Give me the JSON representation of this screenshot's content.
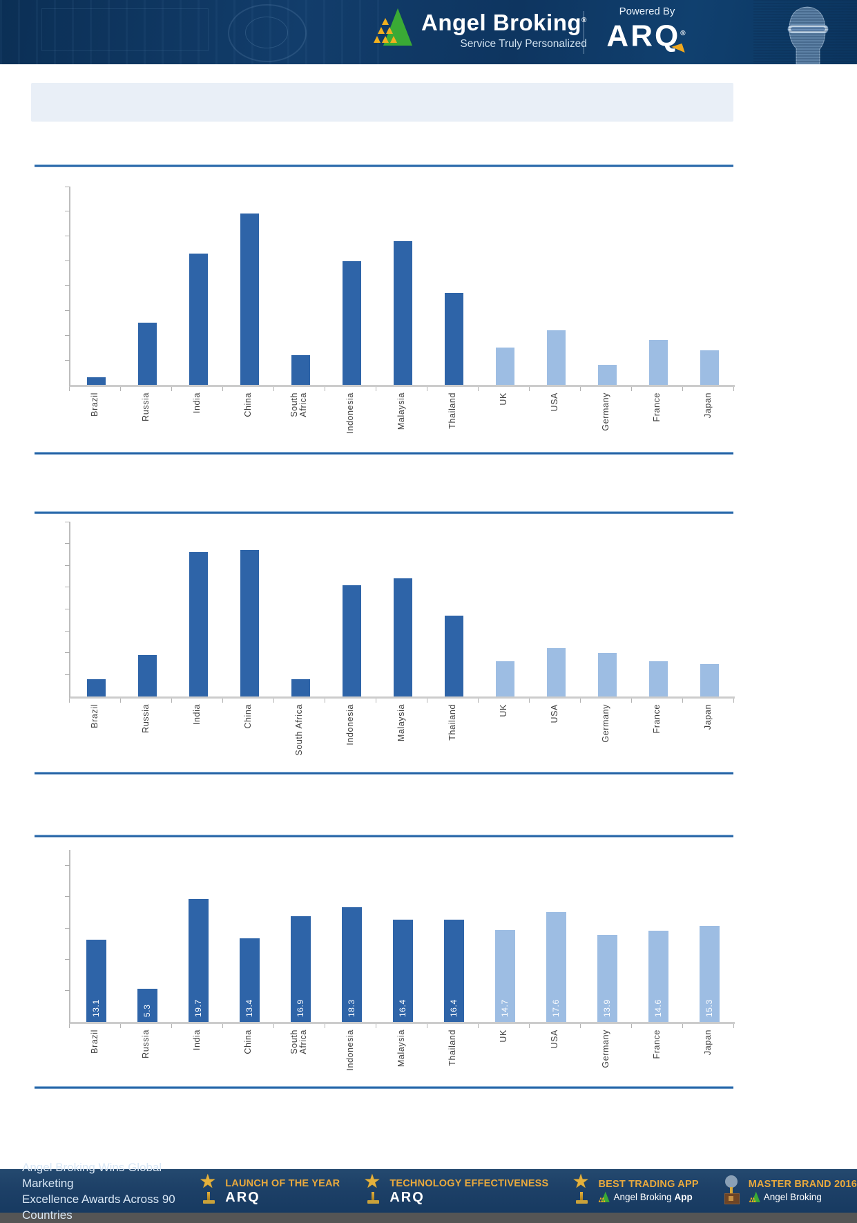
{
  "header": {
    "brand": "Angel Broking",
    "registered_mark": "®",
    "tagline": "Service Truly Personalized",
    "powered_by": "Powered By",
    "product": "ARQ",
    "colors": {
      "band_navy": "#0e3560",
      "gold": "#f0a81e",
      "logo_green": "#3aaa35"
    }
  },
  "title_bar": {
    "text": ""
  },
  "chart_data": [
    {
      "type": "bar",
      "title": "",
      "xlabel": "",
      "ylabel": "",
      "categories": [
        "Brazil",
        "Russia",
        "India",
        "China",
        "South\nAfrica",
        "Indonesia",
        "Malaysia",
        "Thailand",
        "UK",
        "USA",
        "Germany",
        "France",
        "Japan"
      ],
      "values": [
        0.3,
        2.5,
        5.3,
        6.9,
        1.2,
        5.0,
        5.8,
        3.7,
        1.5,
        2.2,
        0.8,
        1.8,
        1.4
      ],
      "note": "y-axis ticks unlabeled; values estimated in gridline units (1 per gridline)",
      "ylim": [
        0,
        8
      ],
      "ytick_step": 1,
      "ytick_labels_visible": false,
      "data_labels_visible": false,
      "grid": false,
      "legend": null,
      "emerging_count": 8,
      "bar_color_emerging": "#2e64a8",
      "bar_color_developed": "#9dbde3"
    },
    {
      "type": "bar",
      "title": "",
      "xlabel": "",
      "ylabel": "",
      "categories": [
        "Brazil",
        "Russia",
        "India",
        "China",
        "South Africa",
        "Indonesia",
        "Malaysia",
        "Thailand",
        "UK",
        "USA",
        "Germany",
        "France",
        "Japan"
      ],
      "values": [
        0.8,
        1.9,
        6.6,
        6.7,
        0.8,
        5.1,
        5.4,
        3.7,
        1.6,
        2.2,
        2.0,
        1.6,
        1.5
      ],
      "note": "y-axis ticks unlabeled; values estimated in gridline units (1 per gridline)",
      "ylim": [
        0,
        8
      ],
      "ytick_step": 1,
      "ytick_labels_visible": false,
      "data_labels_visible": false,
      "grid": false,
      "legend": null,
      "emerging_count": 8,
      "bar_color_emerging": "#2e64a8",
      "bar_color_developed": "#9dbde3"
    },
    {
      "type": "bar",
      "title": "",
      "xlabel": "",
      "ylabel": "",
      "categories": [
        "Brazil",
        "Russia",
        "India",
        "China",
        "South\nAfrica",
        "Indonesia",
        "Malaysia",
        "Thailand",
        "UK",
        "USA",
        "Germany",
        "France",
        "Japan"
      ],
      "values": [
        13.1,
        5.3,
        19.7,
        13.4,
        16.9,
        18.3,
        16.4,
        16.4,
        14.7,
        17.6,
        13.9,
        14.6,
        15.3
      ],
      "ylim": [
        0,
        27.5
      ],
      "ytick_step": 5,
      "ytick_labels_visible": false,
      "data_labels_visible": true,
      "data_label_format": "one_decimal",
      "grid": false,
      "legend": null,
      "emerging_count": 8,
      "bar_color_emerging": "#2e64a8",
      "bar_color_developed": "#9dbde3"
    }
  ],
  "footer": {
    "headline_line1": "Angel Broking Wins Global Marketing",
    "headline_line2": "Excellence Awards Across 90 Countries",
    "badges": [
      {
        "icon": "star-trophy-icon",
        "title": "LAUNCH OF THE YEAR",
        "subtitle": "ARQ",
        "subtitle_bold": "",
        "style": "arq",
        "show_logo": false
      },
      {
        "icon": "star-trophy-icon",
        "title": "TECHNOLOGY EFFECTIVENESS",
        "subtitle": "ARQ",
        "subtitle_bold": "",
        "style": "arq",
        "show_logo": false
      },
      {
        "icon": "star-trophy-icon",
        "title": "BEST TRADING APP",
        "subtitle": "Angel Broking",
        "subtitle_bold": "App",
        "style": "brand",
        "show_logo": true
      },
      {
        "icon": "globe-trophy-icon",
        "title": "MASTER BRAND 2016",
        "subtitle": "Angel Broking",
        "subtitle_bold": "",
        "style": "brand",
        "show_logo": true
      }
    ]
  }
}
